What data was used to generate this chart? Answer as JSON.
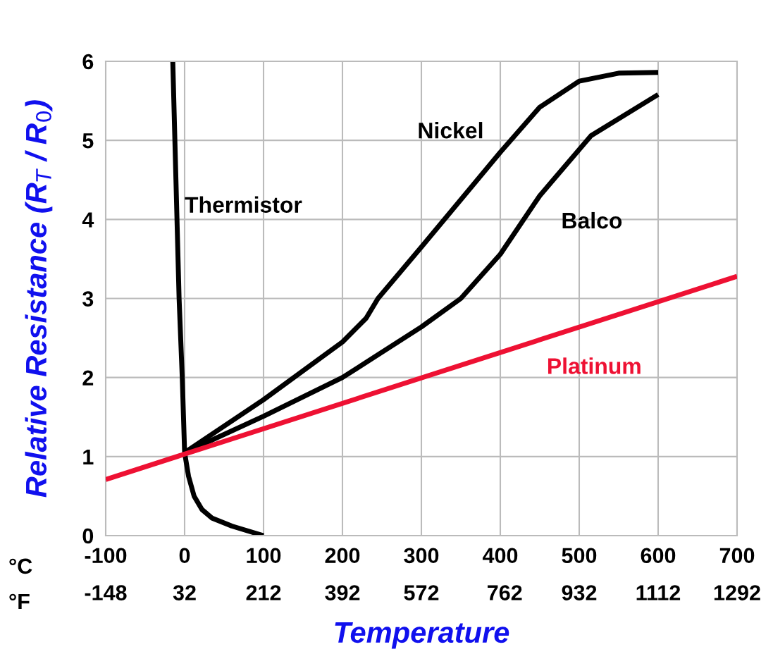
{
  "chart_data": {
    "type": "line",
    "xlabel": "Temperature",
    "ylabel": "Relative Resistance (R$_{T}$ / R$_{0}$)",
    "xlim": [
      -100,
      700
    ],
    "ylim": [
      0,
      6
    ],
    "xticks": [
      -100,
      0,
      100,
      200,
      300,
      400,
      500,
      600,
      700
    ],
    "x2lim": [
      -148,
      1292
    ],
    "x2ticks": [
      -148,
      32,
      212,
      392,
      572,
      762,
      932,
      1112,
      1292
    ],
    "yticks": [
      0,
      1,
      2,
      3,
      4,
      5,
      6
    ],
    "grid": true,
    "legend": false,
    "marker": "none",
    "line_style": "solid",
    "annotations": [
      "°C",
      "°F"
    ],
    "series": [
      {
        "name": "Thermistor",
        "color": "#000000",
        "x": [
          -15,
          -11,
          -7,
          -3,
          0,
          5,
          12,
          22,
          35,
          60,
          100
        ],
        "values": [
          6,
          4.5,
          3,
          2,
          1.05,
          0.75,
          0.5,
          0.33,
          0.22,
          0.12,
          0
        ]
      },
      {
        "name": "Nickel",
        "color": "#000000",
        "x": [
          0,
          100,
          200,
          230,
          245,
          300,
          400,
          450,
          500,
          550,
          600
        ],
        "values": [
          1.05,
          1.72,
          2.45,
          2.75,
          3.0,
          3.65,
          4.85,
          5.42,
          5.75,
          5.85,
          5.86
        ]
      },
      {
        "name": "Balco",
        "color": "#000000",
        "x": [
          0,
          100,
          200,
          300,
          350,
          400,
          450,
          515,
          600
        ],
        "values": [
          1.05,
          1.51,
          2.0,
          2.64,
          3.0,
          3.56,
          4.3,
          5.06,
          5.58
        ]
      },
      {
        "name": "Platinum",
        "color": "#ee1133",
        "x": [
          -100,
          700
        ],
        "values": [
          0.71,
          3.28
        ]
      }
    ]
  }
}
